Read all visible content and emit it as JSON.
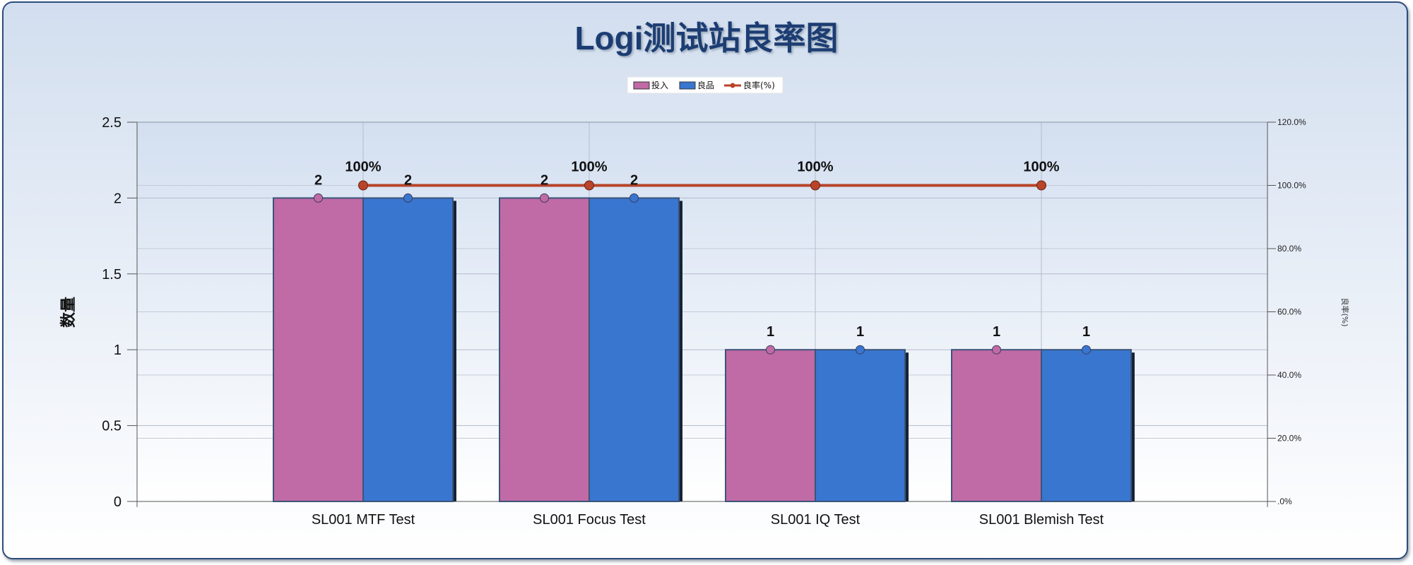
{
  "chart_data": {
    "type": "bar",
    "title": "Logi测试站良率图",
    "categories": [
      "SL001 MTF Test",
      "SL001 Focus Test",
      "SL001 IQ Test",
      "SL001 Blemish Test"
    ],
    "series": [
      {
        "name": "投入",
        "type": "bar",
        "axis": "left",
        "color": "#c06aa6",
        "values": [
          2,
          2,
          1,
          1
        ]
      },
      {
        "name": "良品",
        "type": "bar",
        "axis": "left",
        "color": "#3876d0",
        "values": [
          2,
          2,
          1,
          1
        ]
      },
      {
        "name": "良率(%)",
        "type": "line",
        "axis": "right",
        "color": "#b8442a",
        "values": [
          100,
          100,
          100,
          100
        ]
      }
    ],
    "data_labels": {
      "bars": [
        [
          "2",
          "2",
          "1",
          "1"
        ],
        [
          "2",
          "2",
          "1",
          "1"
        ]
      ],
      "line": [
        "100%",
        "100%",
        "100%",
        "100%"
      ]
    },
    "ylabel": "数量",
    "ylabel_right": "良率(%)",
    "ylim": [
      0,
      2.5
    ],
    "ylim_right": [
      0,
      120
    ],
    "yticks": [
      "0",
      "0.5",
      "1",
      "1.5",
      "2",
      "2.5"
    ],
    "yticks_right": [
      ".0%",
      "20.0%",
      "40.0%",
      "60.0%",
      "80.0%",
      "100.0%",
      "120.0%"
    ],
    "grid": true,
    "legend_position": "top-center"
  }
}
